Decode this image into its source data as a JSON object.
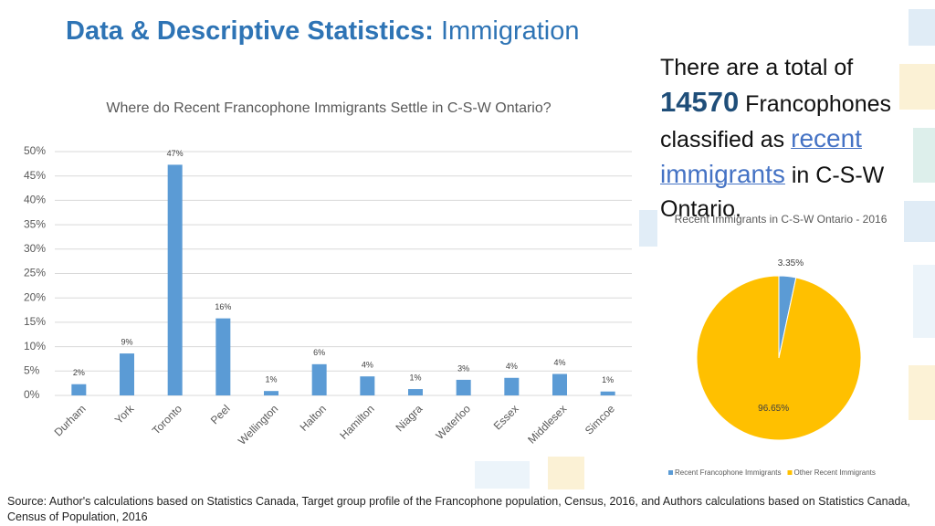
{
  "header": {
    "title_bold": "Data & Descriptive Statistics:",
    "title_rest": "Immigration"
  },
  "text_block": {
    "line1": "There are a total of",
    "count": 14570,
    "line2": "Francophones classified as",
    "link": "recent immigrants",
    "line3": "in C-S-W Ontario."
  },
  "chart_data": [
    {
      "type": "bar",
      "title": "Where do Recent Francophone Immigrants Settle in C-S-W Ontario?",
      "categories": [
        "Durham",
        "York",
        "Toronto",
        "Peel",
        "Wellington",
        "Halton",
        "Hamilton",
        "Niagra",
        "Waterloo",
        "Essex",
        "Middlesex",
        "Simcoe"
      ],
      "values": [
        2.3,
        8.6,
        47.3,
        15.8,
        0.9,
        6.4,
        3.9,
        1.3,
        3.2,
        3.6,
        4.4,
        0.8
      ],
      "value_labels": [
        "2%",
        "9%",
        "47%",
        "16%",
        "1%",
        "6%",
        "4%",
        "1%",
        "3%",
        "4%",
        "4%",
        "1%"
      ],
      "color": "#5b9bd5",
      "grid": true,
      "ylim": [
        0,
        50
      ],
      "yticks": [
        {
          "value": 0,
          "label": "0%"
        },
        {
          "value": 5,
          "label": "5%"
        },
        {
          "value": 10,
          "label": "10%"
        },
        {
          "value": 15,
          "label": "15%"
        },
        {
          "value": 20,
          "label": "20%"
        },
        {
          "value": 25,
          "label": "25%"
        },
        {
          "value": 30,
          "label": "30%"
        },
        {
          "value": 35,
          "label": "35%"
        },
        {
          "value": 40,
          "label": "40%"
        },
        {
          "value": 45,
          "label": "45%"
        },
        {
          "value": 50,
          "label": "50%"
        }
      ]
    },
    {
      "type": "pie",
      "title": "Recent Immigrants in C-S-W Ontario - 2016",
      "categories": [
        "Recent Francophone Immigrants",
        "Other Recent Immigrants"
      ],
      "values": [
        3.35,
        96.65
      ],
      "value_labels": [
        "3.35%",
        "96.65%"
      ],
      "colors": [
        "#5b9bd5",
        "#ffc000"
      ]
    }
  ],
  "source": "Source: Author's calculations based on Statistics Canada, Target group profile of the Francophone population, Census, 2016, and Authors calculations based on Statistics Canada, Census of Population, 2016"
}
